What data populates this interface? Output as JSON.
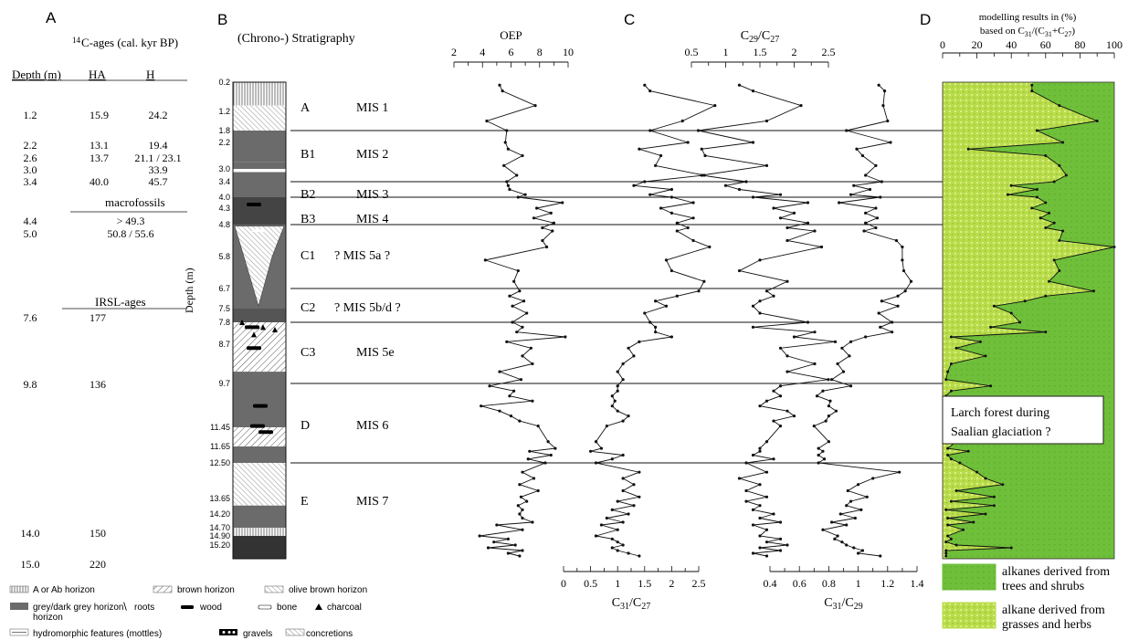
{
  "panels": {
    "A": "A",
    "B": "B",
    "C": "C",
    "D": "D"
  },
  "ages": {
    "title_sup": "14",
    "title_rest": "C-ages (cal. kyr BP)",
    "headers": {
      "depth": "Depth (m)",
      "ha": "HA",
      "h": "H"
    },
    "c14_rows": [
      {
        "depth": "1.2",
        "ha": "15.9",
        "h": "24.2"
      },
      {
        "depth": "2.2",
        "ha": "13.1",
        "h": "19.4"
      },
      {
        "depth": "2.6",
        "ha": "13.7",
        "h": "21.1 / 23.1"
      },
      {
        "depth": "3.0",
        "ha": "",
        "h": "33.9"
      },
      {
        "depth": "3.4",
        "ha": "40.0",
        "h": "45.7"
      }
    ],
    "macro_label": "macrofossils",
    "macro_rows": [
      {
        "depth": "4.4",
        "val": "> 49.3"
      },
      {
        "depth": "5.0",
        "val": "50.8 / 55.6"
      }
    ],
    "irsl_label": "IRSL-ages",
    "irsl_rows": [
      {
        "depth": "7.6",
        "val": "177"
      },
      {
        "depth": "9.8",
        "val": "136"
      },
      {
        "depth": "14.0",
        "val": "150"
      },
      {
        "depth": "15.0",
        "val": "220"
      }
    ]
  },
  "strat": {
    "title": "(Chrono-) Stratigraphy",
    "depth_axis_label": "Depth (m)",
    "depth_labels": [
      "0.2",
      "1.2",
      "1.8",
      "2.2",
      "3.0",
      "3.4",
      "4.0",
      "4.3",
      "4.8",
      "5.8",
      "6.7",
      "7.5",
      "7.8",
      "8.7",
      "9.7",
      "11.45",
      "11.65",
      "12.50",
      "13.65",
      "14.20",
      "14.70",
      "14.90",
      "15.20"
    ],
    "units": [
      {
        "code": "A",
        "mis": "MIS 1"
      },
      {
        "code": "B1",
        "mis": "MIS 2"
      },
      {
        "code": "B2",
        "mis": "MIS 3"
      },
      {
        "code": "B3",
        "mis": "MIS 4"
      },
      {
        "code": "C1",
        "mis": "? MIS 5a ?"
      },
      {
        "code": "C2",
        "mis": "? MIS 5b/d ?"
      },
      {
        "code": "C3",
        "mis": "MIS 5e"
      },
      {
        "code": "D",
        "mis": "MIS 6"
      },
      {
        "code": "E",
        "mis": "MIS 7"
      }
    ]
  },
  "legend": {
    "items": [
      "A or Ab horizon",
      "brown horizon",
      "olive brown horizon",
      "grey/dark grey horizon",
      "roots",
      "wood",
      "bone",
      "charcoal",
      "hydromorphic features (mottles)",
      "gravels",
      "concretions"
    ],
    "alkanes_trees": [
      "alkanes derived from",
      "trees and shrubs"
    ],
    "alkanes_grass": [
      "alkane derived from",
      "grasses and herbs"
    ]
  },
  "annotation": [
    "Larch forest during",
    "Saalian glaciation ?"
  ],
  "chart_data": [
    {
      "type": "line",
      "title": "",
      "xlabel": "OEP",
      "xlim": [
        2,
        10
      ],
      "ticks": [
        "2",
        "4",
        "6",
        "8",
        "10"
      ],
      "ylabel": "Depth (m)",
      "x": [
        5.2,
        5.4,
        7.7,
        4.3,
        5.7,
        5.6,
        5.8,
        6.8,
        5.5,
        6.4,
        5.7,
        5.8,
        5.9,
        7.0,
        6.5,
        9.6,
        7.8,
        8.8,
        7.6,
        9.0,
        8.2,
        8.9,
        8.2,
        8.5,
        4.2,
        6.5,
        6.2,
        6.6,
        5.9,
        6.9,
        6.1,
        7.1,
        6.1,
        6.8,
        6.4,
        9.8,
        5.7,
        7.4,
        6.8,
        7.5,
        5.2,
        6.7,
        4.5,
        6.2,
        5.9,
        7.5,
        3.9,
        5.2,
        6.0,
        6.6,
        7.9,
        8.6,
        9.1,
        7.3,
        8.8,
        7.2,
        8.4,
        6.8,
        7.6,
        6.6,
        7.9,
        6.7,
        7.1,
        6.5,
        6.8,
        6.6,
        6.8,
        7.5,
        5.0,
        6.8,
        3.8,
        5.8,
        4.8,
        6.3,
        4.4,
        6.8,
        5.8,
        6.6
      ],
      "y": [
        0.3,
        0.5,
        1.0,
        1.5,
        1.8,
        2.2,
        2.4,
        2.6,
        2.9,
        3.2,
        3.4,
        3.55,
        3.7,
        3.9,
        4.0,
        4.15,
        4.3,
        4.45,
        4.6,
        4.75,
        4.9,
        5.0,
        5.3,
        5.5,
        5.9,
        6.2,
        6.5,
        6.8,
        7.0,
        7.2,
        7.4,
        7.6,
        7.8,
        8.0,
        8.2,
        8.4,
        8.6,
        8.8,
        9.0,
        9.2,
        9.4,
        9.6,
        9.8,
        10.0,
        10.2,
        10.4,
        10.6,
        10.8,
        11.0,
        11.2,
        11.4,
        11.6,
        11.75,
        11.9,
        12.1,
        12.3,
        12.5,
        12.8,
        13.0,
        13.2,
        13.4,
        13.6,
        13.75,
        13.9,
        14.05,
        14.2,
        14.35,
        14.5,
        14.6,
        14.75,
        14.9,
        15.0,
        15.1,
        15.2,
        15.3,
        15.4,
        15.5,
        15.6
      ]
    },
    {
      "type": "line",
      "title": "",
      "xlabel": "C29/C27",
      "xlim": [
        0.5,
        2.5
      ],
      "ticks": [
        "0.5",
        "1",
        "1.5",
        "2",
        "2.5"
      ],
      "ylabel": "Depth (m)",
      "x": [
        1.2,
        1.4,
        2.1,
        1.6,
        0.6,
        1.4,
        0.65,
        0.7,
        1.6,
        0.65,
        1.3,
        1.0,
        1.2,
        1.8,
        1.4,
        2.2,
        1.7,
        2.0,
        1.8,
        2.2,
        1.9,
        2.3,
        1.9,
        2.4,
        1.5,
        1.2,
        1.9,
        1.6,
        1.7,
        1.5,
        1.4,
        1.5,
        2.2,
        1.4,
        2.3,
        2.0,
        2.6,
        1.8,
        1.9,
        2.3,
        1.9,
        2.5,
        1.8,
        1.7,
        1.8,
        1.6,
        1.5,
        1.9,
        2.0,
        1.7,
        1.8,
        1.6,
        1.5,
        1.5,
        1.4,
        1.7,
        1.3,
        1.6,
        1.2,
        1.5,
        1.3,
        1.6,
        1.3,
        1.5,
        1.4,
        1.7,
        1.5,
        1.8,
        1.4,
        1.6,
        1.5,
        1.8,
        1.6,
        1.9,
        1.5,
        1.8,
        1.4,
        1.6
      ],
      "y": [
        0.3,
        0.5,
        1.0,
        1.5,
        1.8,
        2.2,
        2.4,
        2.6,
        2.9,
        3.2,
        3.4,
        3.55,
        3.7,
        3.9,
        4.0,
        4.15,
        4.3,
        4.45,
        4.6,
        4.75,
        4.9,
        5.0,
        5.3,
        5.5,
        5.9,
        6.2,
        6.5,
        6.8,
        7.0,
        7.2,
        7.4,
        7.6,
        7.8,
        8.0,
        8.2,
        8.4,
        8.6,
        8.8,
        9.0,
        9.2,
        9.4,
        9.6,
        9.8,
        10.0,
        10.2,
        10.4,
        10.6,
        10.8,
        11.0,
        11.2,
        11.4,
        11.6,
        11.75,
        11.9,
        12.1,
        12.3,
        12.5,
        12.8,
        13.0,
        13.2,
        13.4,
        13.6,
        13.75,
        13.9,
        14.05,
        14.2,
        14.35,
        14.5,
        14.6,
        14.75,
        14.9,
        15.0,
        15.1,
        15.2,
        15.3,
        15.4,
        15.5,
        15.6
      ]
    },
    {
      "type": "line",
      "title": "",
      "xlabel": "C31/C27",
      "xlim": [
        0,
        2.5
      ],
      "ticks": [
        "0",
        "0.5",
        "1",
        "1.5",
        "2",
        "2.5"
      ],
      "ylabel": "Depth (m)",
      "x": [
        1.5,
        1.6,
        2.8,
        2.2,
        1.6,
        2.3,
        1.4,
        1.8,
        1.7,
        2.6,
        1.5,
        1.3,
        2.0,
        1.6,
        2.0,
        2.4,
        1.8,
        2.0,
        2.4,
        2.1,
        2.3,
        2.1,
        2.4,
        2.7,
        1.9,
        2.0,
        2.6,
        2.5,
        2.1,
        1.7,
        1.9,
        1.5,
        1.6,
        1.7,
        1.7,
        2.0,
        1.4,
        1.2,
        1.3,
        1.1,
        1.0,
        1.1,
        1.0,
        1.0,
        0.9,
        0.95,
        0.9,
        1.0,
        1.2,
        1.1,
        0.8,
        0.6,
        0.7,
        0.5,
        1.1,
        0.9,
        0.6,
        1.4,
        1.1,
        1.3,
        1.1,
        1.4,
        1.0,
        1.3,
        0.9,
        1.2,
        0.8,
        1.1,
        0.7,
        1.0,
        0.6,
        0.9,
        1.0,
        1.1,
        0.9,
        1.0,
        1.2,
        1.4
      ],
      "y": [
        0.3,
        0.5,
        1.0,
        1.5,
        1.8,
        2.2,
        2.4,
        2.6,
        2.9,
        3.2,
        3.4,
        3.55,
        3.7,
        3.9,
        4.0,
        4.15,
        4.3,
        4.45,
        4.6,
        4.75,
        4.9,
        5.0,
        5.3,
        5.5,
        5.9,
        6.2,
        6.5,
        6.8,
        7.0,
        7.2,
        7.4,
        7.6,
        7.8,
        8.0,
        8.2,
        8.4,
        8.6,
        8.8,
        9.0,
        9.2,
        9.4,
        9.6,
        9.8,
        10.0,
        10.2,
        10.4,
        10.6,
        10.8,
        11.0,
        11.2,
        11.4,
        11.6,
        11.75,
        11.9,
        12.1,
        12.3,
        12.5,
        12.8,
        13.0,
        13.2,
        13.4,
        13.6,
        13.75,
        13.9,
        14.05,
        14.2,
        14.35,
        14.5,
        14.6,
        14.75,
        14.9,
        15.0,
        15.1,
        15.2,
        15.3,
        15.4,
        15.5,
        15.6
      ]
    },
    {
      "type": "line",
      "title": "",
      "xlabel": "C31/C29",
      "xlim": [
        0.4,
        1.4
      ],
      "ticks": [
        "0.4",
        "0.6",
        "0.8",
        "1",
        "1.2",
        "1.4"
      ],
      "ylabel": "Depth (m)",
      "x": [
        1.14,
        1.18,
        1.17,
        1.2,
        0.92,
        1.22,
        0.99,
        1.03,
        1.12,
        1.05,
        1.16,
        0.97,
        1.08,
        0.95,
        1.15,
        0.87,
        1.12,
        1.05,
        1.13,
        1.05,
        1.12,
        1.04,
        1.26,
        1.3,
        1.3,
        1.31,
        1.36,
        1.32,
        1.27,
        1.16,
        1.27,
        1.14,
        1.23,
        1.15,
        1.23,
        1.05,
        0.95,
        0.89,
        0.94,
        0.86,
        0.9,
        0.82,
        0.95,
        0.76,
        0.72,
        0.81,
        0.8,
        0.85,
        0.8,
        0.78,
        0.7,
        0.8,
        0.73,
        0.76,
        0.73,
        0.77,
        0.73,
        1.28,
        1.1,
        1.0,
        0.93,
        1.06,
        0.95,
        0.92,
        1.02,
        0.88,
        0.98,
        0.82,
        0.92,
        0.76,
        0.86,
        0.84,
        0.89,
        0.92,
        0.97,
        1.03,
        1.0,
        1.15
      ],
      "y": [
        0.3,
        0.5,
        1.0,
        1.5,
        1.8,
        2.2,
        2.4,
        2.6,
        2.9,
        3.2,
        3.4,
        3.55,
        3.7,
        3.9,
        4.0,
        4.15,
        4.3,
        4.45,
        4.6,
        4.75,
        4.9,
        5.0,
        5.3,
        5.5,
        5.9,
        6.2,
        6.5,
        6.8,
        7.0,
        7.2,
        7.4,
        7.6,
        7.8,
        8.0,
        8.2,
        8.4,
        8.6,
        8.8,
        9.0,
        9.2,
        9.4,
        9.6,
        9.8,
        10.0,
        10.2,
        10.4,
        10.6,
        10.8,
        11.0,
        11.2,
        11.4,
        11.6,
        11.75,
        11.9,
        12.1,
        12.3,
        12.5,
        12.8,
        13.0,
        13.2,
        13.4,
        13.6,
        13.75,
        13.9,
        14.05,
        14.2,
        14.35,
        14.5,
        14.6,
        14.75,
        14.9,
        15.0,
        15.1,
        15.2,
        15.3,
        15.4,
        15.5,
        15.6
      ]
    },
    {
      "type": "area",
      "title": "modelling results in (%)",
      "subtitle": "based on C31/(C31+C27)",
      "xlim": [
        0,
        100
      ],
      "ticks": [
        "0",
        "20",
        "40",
        "60",
        "80",
        "100"
      ],
      "ylabel": "Depth (m)",
      "series": [
        {
          "name": "alkane derived from grasses and herbs",
          "color": "#b9dc4a"
        },
        {
          "name": "alkanes derived from trees and shrubs",
          "color": "#6fbf3a"
        }
      ],
      "x": [
        52,
        52,
        68,
        90,
        55,
        70,
        15,
        60,
        68,
        72,
        65,
        40,
        55,
        38,
        55,
        60,
        52,
        62,
        57,
        65,
        60,
        70,
        68,
        100,
        65,
        68,
        62,
        88,
        60,
        48,
        30,
        40,
        45,
        28,
        60,
        5,
        22,
        8,
        25,
        5,
        3,
        2,
        28,
        5,
        2,
        8,
        2,
        15,
        8,
        2,
        2,
        8,
        3,
        15,
        3,
        5,
        10,
        20,
        25,
        35,
        8,
        30,
        5,
        30,
        2,
        25,
        3,
        18,
        3,
        12,
        3,
        5,
        2,
        8,
        40,
        2,
        2,
        2
      ],
      "y": [
        0.3,
        0.5,
        1.0,
        1.5,
        1.8,
        2.2,
        2.4,
        2.6,
        2.9,
        3.2,
        3.4,
        3.55,
        3.7,
        3.9,
        4.0,
        4.15,
        4.3,
        4.45,
        4.6,
        4.75,
        4.9,
        5.0,
        5.3,
        5.5,
        5.9,
        6.2,
        6.5,
        6.8,
        7.0,
        7.2,
        7.4,
        7.6,
        7.8,
        8.0,
        8.2,
        8.4,
        8.6,
        8.8,
        9.0,
        9.2,
        9.4,
        9.6,
        9.8,
        10.0,
        10.2,
        10.4,
        10.6,
        10.8,
        11.0,
        11.2,
        11.4,
        11.6,
        11.75,
        11.9,
        12.1,
        12.3,
        12.5,
        12.8,
        13.0,
        13.2,
        13.4,
        13.6,
        13.75,
        13.9,
        14.05,
        14.2,
        14.35,
        14.5,
        14.6,
        14.75,
        14.9,
        15.0,
        15.1,
        15.2,
        15.3,
        15.4,
        15.5,
        15.6
      ]
    }
  ],
  "boundaries_depth": [
    1.8,
    3.4,
    4.0,
    4.8,
    6.7,
    7.8,
    9.7,
    12.5
  ],
  "colors": {
    "trees": "#6fbf3a",
    "grass": "#b9dc4a",
    "grey": "#6b6b6b",
    "dark": "#333333"
  }
}
